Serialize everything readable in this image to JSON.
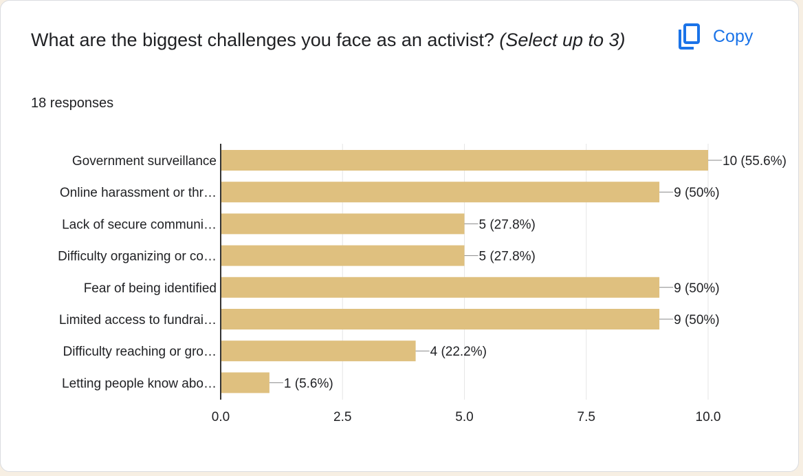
{
  "question": {
    "title": "What are the biggest challenges you face as an activist?",
    "hint": "(Select up to 3)"
  },
  "responses_label": "18 responses",
  "copy_button": {
    "label": "Copy",
    "icon": "copy-icon"
  },
  "colors": {
    "bar": "#dfc07f",
    "accent": "#1a73e8",
    "grid": "#e6e6e6",
    "axis": "#333333",
    "text": "#202124"
  },
  "chart_data": {
    "type": "bar",
    "orientation": "horizontal",
    "categories": [
      "Government surveillance",
      "Online harassment or thr…",
      "Lack of secure communi…",
      "Difficulty organizing or co…",
      "Fear of being identified",
      "Limited access to fundrai…",
      "Difficulty reaching or gro…",
      "Letting people know abo…"
    ],
    "values": [
      10,
      9,
      5,
      5,
      9,
      9,
      4,
      1
    ],
    "value_labels": [
      "10 (55.6%)",
      "9 (50%)",
      "5 (27.8%)",
      "5 (27.8%)",
      "9 (50%)",
      "9 (50%)",
      "4 (22.2%)",
      "1 (5.6%)"
    ],
    "xlim": [
      0,
      10
    ],
    "xticks": [
      "0.0",
      "2.5",
      "5.0",
      "7.5",
      "10.0"
    ],
    "xtick_values": [
      0,
      2.5,
      5,
      7.5,
      10
    ],
    "grid": true
  }
}
